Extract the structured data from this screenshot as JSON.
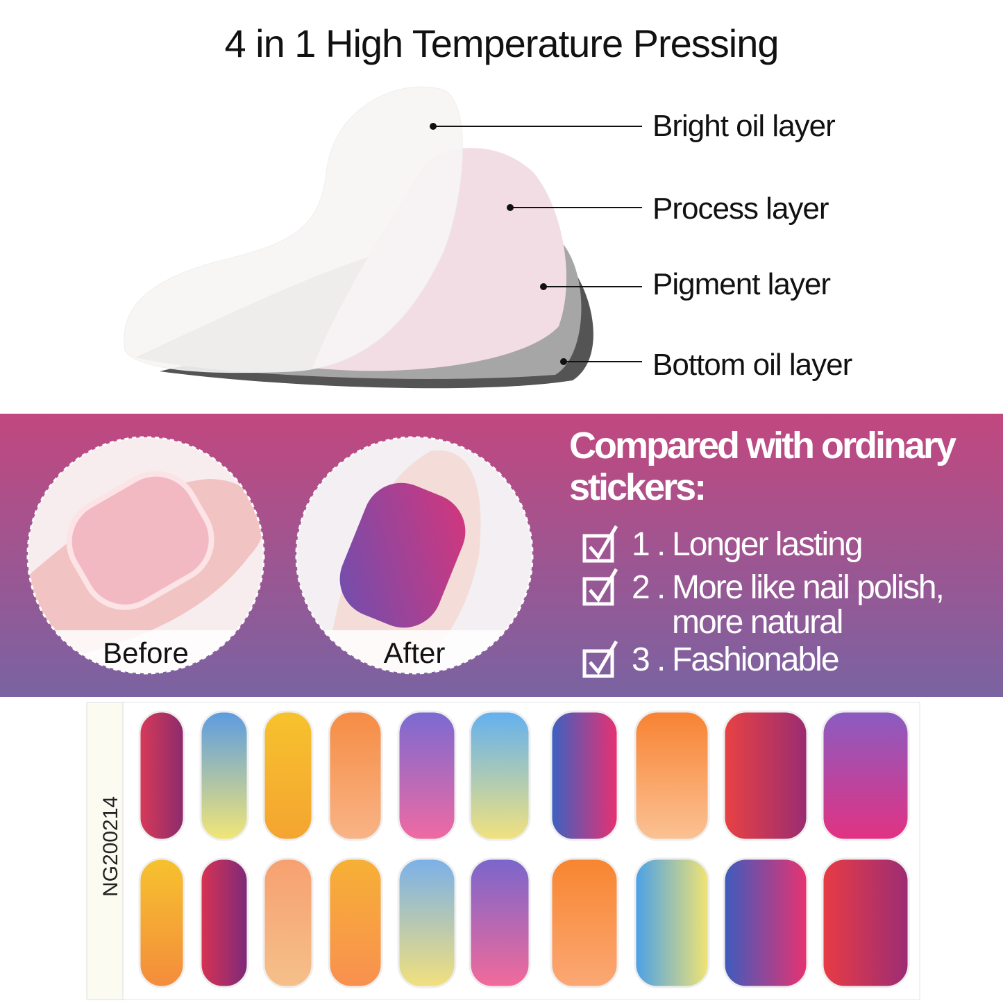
{
  "header": {
    "title": "4 in 1 High Temperature Pressing"
  },
  "layers": [
    "Bright oil layer",
    "Process layer",
    "Pigment layer",
    "Bottom oil layer"
  ],
  "comparison": {
    "before": "Before",
    "after": "After",
    "heading": "Compared with ordinary stickers:",
    "items": [
      {
        "number": "1 .",
        "text": "Longer lasting"
      },
      {
        "number": "2 .",
        "text": "More like nail polish, more natural"
      },
      {
        "number": "3 .",
        "text": "Fashionable"
      }
    ]
  },
  "sheet": {
    "code": "NG200214"
  }
}
